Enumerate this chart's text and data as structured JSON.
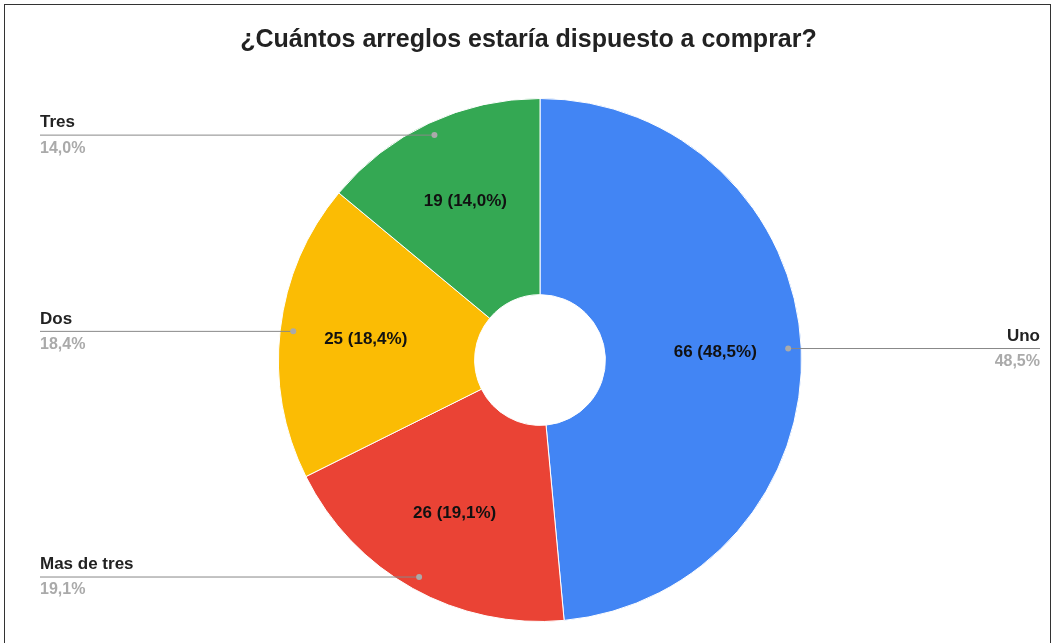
{
  "chart_data": {
    "type": "donut",
    "title": "¿Cuántos arreglos estaría dispuesto a comprar?",
    "categories": [
      "Uno",
      "Mas de tres",
      "Dos",
      "Tres"
    ],
    "values": [
      66,
      26,
      25,
      19
    ],
    "colors": [
      "#4285f4",
      "#ea4335",
      "#fbbc04",
      "#34a853"
    ],
    "value_labels": [
      "66 (48,5%)",
      "26 (19,1%)",
      "25 (18,4%)",
      "19 (14,0%)"
    ],
    "annotations": [
      "48,5%",
      "19,1%",
      "18,4%",
      "14,0%"
    ],
    "legend": false
  }
}
